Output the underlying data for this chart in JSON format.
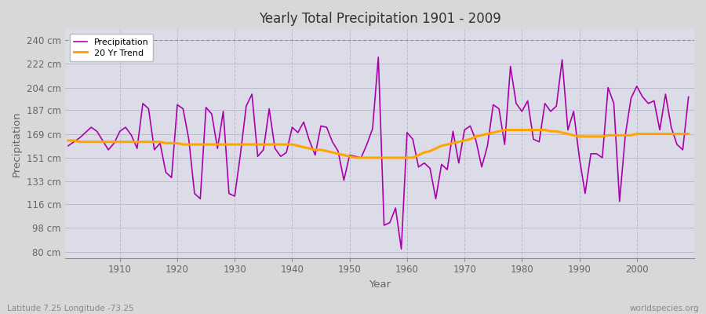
{
  "title": "Yearly Total Precipitation 1901 - 2009",
  "xlabel": "Year",
  "ylabel": "Precipitation",
  "subtitle_left": "Latitude 7.25 Longitude -73.25",
  "subtitle_right": "worldspecies.org",
  "yticks": [
    80,
    98,
    116,
    133,
    151,
    169,
    187,
    204,
    222,
    240
  ],
  "ytick_labels": [
    "80 cm",
    "98 cm",
    "116 cm",
    "133 cm",
    "151 cm",
    "169 cm",
    "187 cm",
    "204 cm",
    "222 cm",
    "240 cm"
  ],
  "years": [
    1901,
    1902,
    1903,
    1904,
    1905,
    1906,
    1907,
    1908,
    1909,
    1910,
    1911,
    1912,
    1913,
    1914,
    1915,
    1916,
    1917,
    1918,
    1919,
    1920,
    1921,
    1922,
    1923,
    1924,
    1925,
    1926,
    1927,
    1928,
    1929,
    1930,
    1931,
    1932,
    1933,
    1934,
    1935,
    1936,
    1937,
    1938,
    1939,
    1940,
    1941,
    1942,
    1943,
    1944,
    1945,
    1946,
    1947,
    1948,
    1949,
    1950,
    1951,
    1952,
    1953,
    1954,
    1955,
    1956,
    1957,
    1958,
    1959,
    1960,
    1961,
    1962,
    1963,
    1964,
    1965,
    1966,
    1967,
    1968,
    1969,
    1970,
    1971,
    1972,
    1973,
    1974,
    1975,
    1976,
    1977,
    1978,
    1979,
    1980,
    1981,
    1982,
    1983,
    1984,
    1985,
    1986,
    1987,
    1988,
    1989,
    1990,
    1991,
    1992,
    1993,
    1994,
    1995,
    1996,
    1997,
    1998,
    1999,
    2000,
    2001,
    2002,
    2003,
    2004,
    2005,
    2006,
    2007,
    2008,
    2009
  ],
  "precipitation": [
    160,
    163,
    166,
    170,
    174,
    171,
    164,
    157,
    162,
    171,
    174,
    168,
    158,
    192,
    188,
    157,
    162,
    140,
    136,
    191,
    188,
    165,
    124,
    120,
    189,
    184,
    158,
    186,
    124,
    122,
    154,
    190,
    199,
    152,
    157,
    188,
    158,
    152,
    155,
    174,
    170,
    178,
    164,
    153,
    175,
    174,
    163,
    156,
    134,
    153,
    152,
    151,
    161,
    173,
    227,
    100,
    102,
    113,
    82,
    170,
    165,
    144,
    147,
    143,
    120,
    146,
    142,
    171,
    147,
    172,
    175,
    164,
    144,
    160,
    191,
    188,
    161,
    220,
    192,
    186,
    194,
    165,
    163,
    192,
    186,
    190,
    225,
    172,
    186,
    151,
    124,
    154,
    154,
    151,
    204,
    192,
    118,
    168,
    196,
    205,
    197,
    192,
    194,
    172,
    199,
    174,
    161,
    157,
    197
  ],
  "trend": [
    164,
    164,
    163,
    163,
    163,
    163,
    163,
    163,
    163,
    163,
    163,
    163,
    163,
    163,
    163,
    163,
    163,
    162,
    162,
    162,
    161,
    161,
    161,
    161,
    161,
    161,
    161,
    161,
    161,
    161,
    161,
    161,
    161,
    161,
    161,
    161,
    161,
    161,
    161,
    161,
    160,
    159,
    158,
    157,
    157,
    156,
    155,
    154,
    153,
    152,
    151,
    151,
    151,
    151,
    151,
    151,
    151,
    151,
    151,
    151,
    151,
    153,
    155,
    156,
    158,
    160,
    161,
    162,
    163,
    164,
    165,
    167,
    168,
    169,
    170,
    171,
    172,
    172,
    172,
    172,
    172,
    172,
    172,
    172,
    171,
    171,
    170,
    169,
    168,
    167,
    167,
    167,
    167,
    167,
    168,
    168,
    168,
    168,
    168,
    169,
    169,
    169,
    169,
    169,
    169,
    169,
    169,
    169,
    169
  ],
  "precip_color": "#AA00AA",
  "trend_color": "#FFA500",
  "fig_bg_color": "#D8D8D8",
  "plot_bg_color": "#DCDCE8",
  "grid_color_v": "#BBBBCC",
  "grid_color_h": "#BBBBCC",
  "top_dotted_color": "#888888",
  "spine_color": "#888888",
  "tick_color": "#666666",
  "title_color": "#333333",
  "label_color": "#666666",
  "ylim": [
    75,
    248
  ],
  "xlim": [
    1900.5,
    2010
  ]
}
